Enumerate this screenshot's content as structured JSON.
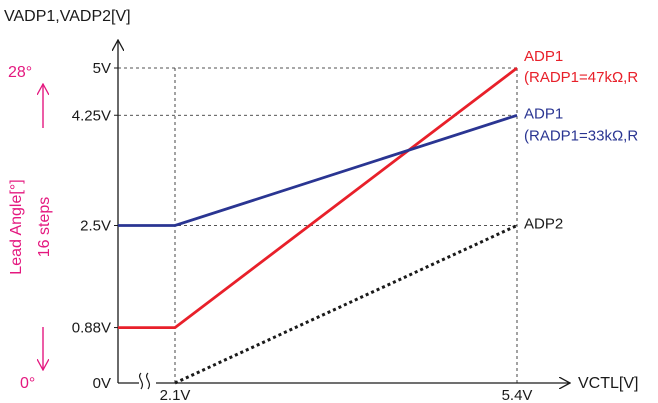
{
  "chart_data": {
    "type": "line",
    "title": "",
    "ylabel": "VADP1,VADP2[V]",
    "xlabel": "VCTL[V]",
    "xlim": [
      0,
      5.4
    ],
    "ylim": [
      0,
      5
    ],
    "x_axis_break": true,
    "x_ticks": [
      {
        "value": 2.1,
        "label": "2.1V"
      },
      {
        "value": 5.4,
        "label": "5.4V"
      }
    ],
    "y_ticks": [
      {
        "value": 0,
        "label": "0V"
      },
      {
        "value": 0.88,
        "label": "0.88V"
      },
      {
        "value": 2.5,
        "label": "2.5V"
      },
      {
        "value": 4.25,
        "label": "4.25V"
      },
      {
        "value": 5,
        "label": "5V"
      }
    ],
    "grid": "dashed reference lines",
    "series": [
      {
        "name": "ADP1",
        "annotation": "(RADP1=47kΩ,R",
        "color": "#e8202a",
        "style": "solid",
        "points": [
          [
            0,
            0.88
          ],
          [
            2.1,
            0.88
          ],
          [
            5.4,
            5
          ]
        ]
      },
      {
        "name": "ADP1",
        "annotation": "(RADP1=33kΩ,R",
        "color": "#2a3592",
        "style": "solid",
        "points": [
          [
            0,
            2.5
          ],
          [
            2.1,
            2.5
          ],
          [
            5.4,
            4.25
          ]
        ]
      },
      {
        "name": "ADP2",
        "annotation": "",
        "color": "#1a1a1a",
        "style": "dotted",
        "points": [
          [
            2.1,
            0
          ],
          [
            5.4,
            2.5
          ]
        ]
      }
    ],
    "secondary_axis": {
      "label": "Lead Angle[°]",
      "range_label": "16 steps",
      "top_label": "28°",
      "bottom_label": "0°",
      "color": "#e4187f"
    }
  }
}
